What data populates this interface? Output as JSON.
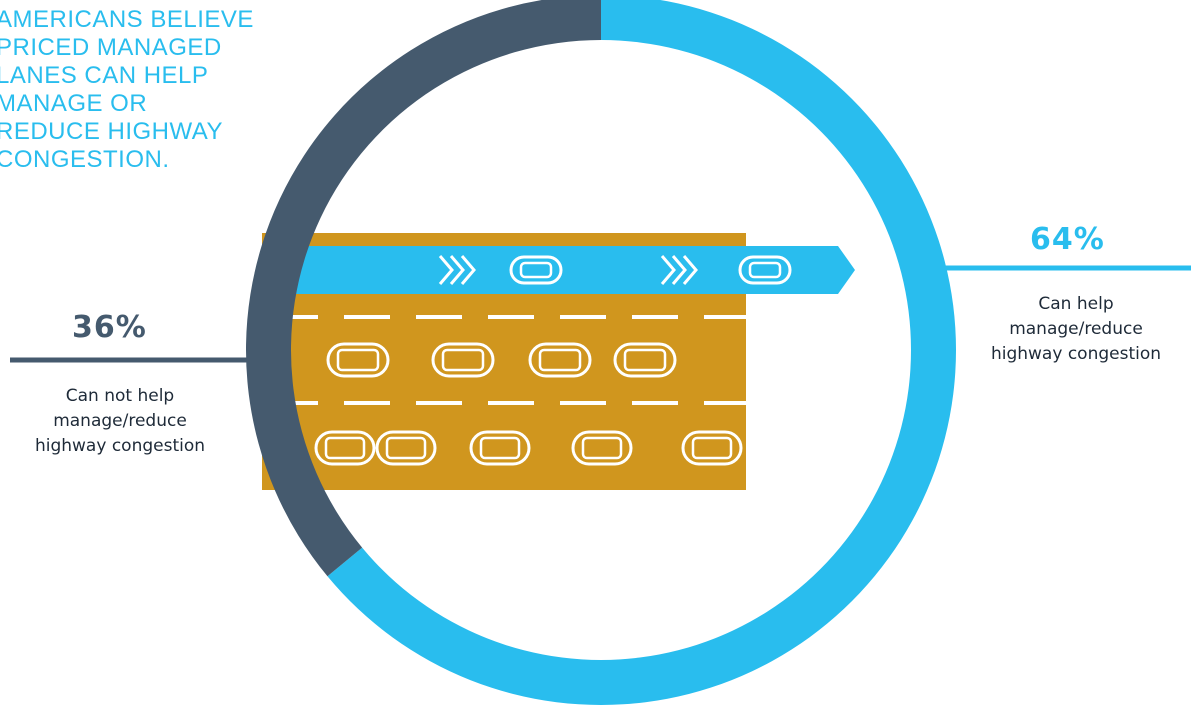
{
  "headline": "AMERICANS BELIEVE\nPRICED MANAGED\nLANES CAN HELP\nMANAGE OR\nREDUCE HIGHWAY\nCONGESTION.",
  "colors": {
    "yes": "#29bdee",
    "no": "#455a6e",
    "road": "#d0961e",
    "lane_marking": "#ffffff",
    "text": "#1e2a38"
  },
  "chart_data": {
    "type": "pie",
    "variant": "donut",
    "slices": [
      {
        "label_value": "64%",
        "value": 64,
        "description": "Can help\nmanage/reduce\nhighway congestion",
        "color": "#29bdee"
      },
      {
        "label_value": "36%",
        "value": 36,
        "description": "Can not help\nmanage/reduce\nhighway congestion",
        "color": "#455a6e"
      }
    ]
  },
  "illustration": {
    "icons": [
      "car-icon",
      "chevron-arrow-icon"
    ],
    "managed_lane_cars": 2,
    "traffic_rows": [
      4,
      5
    ]
  }
}
